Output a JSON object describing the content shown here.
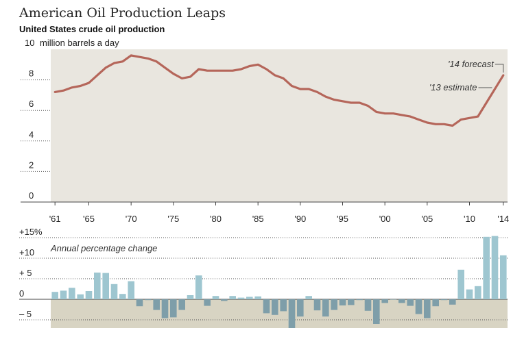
{
  "title": "American Oil Production Leaps",
  "subtitle": "United States crude oil production",
  "colors": {
    "line": "#b5665a",
    "panel_bg": "#e9e6df",
    "bar": "#9ec6d0",
    "bar_negative": "#7e9ea9",
    "neg_band": "#d8d4c3",
    "grid": "#555555"
  },
  "chart_data": [
    {
      "type": "line",
      "title": "United States crude oil production",
      "ylabel": "million barrels a day",
      "ylim": [
        0,
        10
      ],
      "y_ticks": [
        0,
        2,
        4,
        6,
        8,
        10
      ],
      "y_tick_labels": [
        "0",
        "2",
        "4",
        "6",
        "8",
        "10"
      ],
      "x_ticks": [
        1961,
        1965,
        1970,
        1975,
        1980,
        1985,
        1990,
        1995,
        2000,
        2005,
        2010,
        2014
      ],
      "x_tick_labels": [
        "'61",
        "'65",
        "'70",
        "'75",
        "'80",
        "'85",
        "'90",
        "'95",
        "'00",
        "'05",
        "'10",
        "'14"
      ],
      "x": [
        1961,
        1962,
        1963,
        1964,
        1965,
        1966,
        1967,
        1968,
        1969,
        1970,
        1971,
        1972,
        1973,
        1974,
        1975,
        1976,
        1977,
        1978,
        1979,
        1980,
        1981,
        1982,
        1983,
        1984,
        1985,
        1986,
        1987,
        1988,
        1989,
        1990,
        1991,
        1992,
        1993,
        1994,
        1995,
        1996,
        1997,
        1998,
        1999,
        2000,
        2001,
        2002,
        2003,
        2004,
        2005,
        2006,
        2007,
        2008,
        2009,
        2010,
        2011,
        2012,
        2013,
        2014
      ],
      "series": [
        {
          "values": [
            7.2,
            7.3,
            7.5,
            7.6,
            7.8,
            8.3,
            8.8,
            9.1,
            9.2,
            9.6,
            9.5,
            9.4,
            9.2,
            8.8,
            8.4,
            8.1,
            8.2,
            8.7,
            8.6,
            8.6,
            8.6,
            8.6,
            8.7,
            8.9,
            9.0,
            8.7,
            8.3,
            8.1,
            7.6,
            7.4,
            7.4,
            7.2,
            6.9,
            6.7,
            6.6,
            6.5,
            6.5,
            6.3,
            5.9,
            5.8,
            5.8,
            5.7,
            5.6,
            5.4,
            5.2,
            5.1,
            5.1,
            5.0,
            5.4,
            5.5,
            5.6,
            6.5,
            7.4,
            8.3
          ]
        }
      ],
      "annotations": [
        {
          "text": "'14 forecast",
          "x": 2014
        },
        {
          "text": "'13 estimate",
          "x": 2013
        }
      ],
      "grid": true
    },
    {
      "type": "bar",
      "title": "Annual percentage change",
      "ylim": [
        -7,
        15
      ],
      "y_ticks": [
        -5,
        0,
        5,
        10,
        15
      ],
      "y_tick_labels": [
        "– 5",
        "0",
        "+ 5",
        "+10",
        "+15%"
      ],
      "categories": [
        1961,
        1962,
        1963,
        1964,
        1965,
        1966,
        1967,
        1968,
        1969,
        1970,
        1971,
        1972,
        1973,
        1974,
        1975,
        1976,
        1977,
        1978,
        1979,
        1980,
        1981,
        1982,
        1983,
        1984,
        1985,
        1986,
        1987,
        1988,
        1989,
        1990,
        1991,
        1992,
        1993,
        1994,
        1995,
        1996,
        1997,
        1998,
        1999,
        2000,
        2001,
        2002,
        2003,
        2004,
        2005,
        2006,
        2007,
        2008,
        2009,
        2010,
        2011,
        2012,
        2013,
        2014
      ],
      "values": [
        1.8,
        2.1,
        2.8,
        1.2,
        2.0,
        6.5,
        6.4,
        3.7,
        1.3,
        4.4,
        -1.7,
        -0.2,
        -2.6,
        -4.6,
        -4.4,
        -2.6,
        1.0,
        5.8,
        -1.6,
        0.8,
        -0.4,
        0.8,
        0.4,
        0.6,
        0.7,
        -3.4,
        -3.8,
        -2.9,
        -7.0,
        -4.2,
        0.8,
        -2.7,
        -4.2,
        -2.6,
        -1.5,
        -1.4,
        -0.2,
        -2.8,
        -6.0,
        -0.9,
        -0.1,
        -0.9,
        -1.6,
        -3.6,
        -4.6,
        -1.7,
        -0.2,
        -1.3,
        7.2,
        2.4,
        3.2,
        15.2,
        15.4,
        10.7
      ],
      "grid": true
    }
  ]
}
